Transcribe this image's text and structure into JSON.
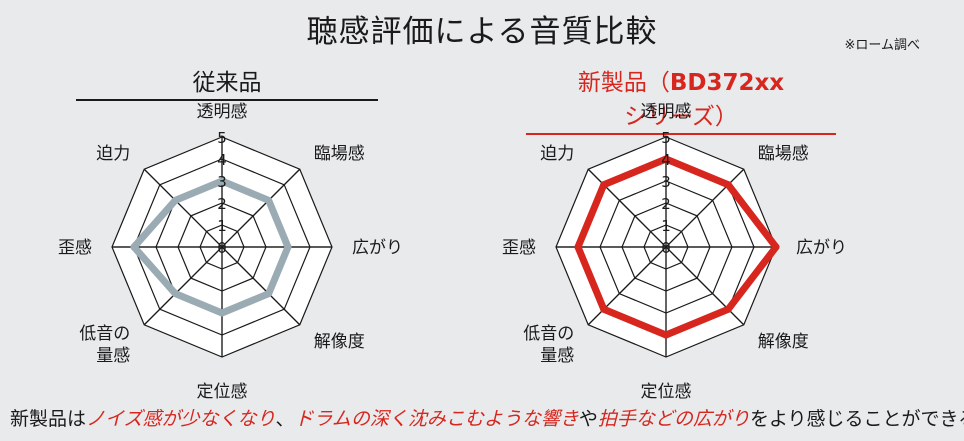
{
  "header": {
    "title": "聴感評価による音質比較",
    "note": "※ローム調べ"
  },
  "panels": {
    "left": {
      "title": "従来品"
    },
    "right": {
      "title_prefix": "新製品（",
      "title_model": "BD372xx",
      "title_suffix": "シリーズ）"
    }
  },
  "footer": {
    "seg1": "新製品は",
    "seg2": "ノイズ感が少なくなり",
    "seg3": "、",
    "seg4": "ドラムの深く沈みこむような響き",
    "seg5": "や",
    "seg6": "拍手などの広がり",
    "seg7": "をより感じることができる"
  },
  "colors": {
    "conventional": "#9aabb3",
    "new": "#d7261e",
    "grid": "#1a1a1a",
    "background": "#e8eaec"
  },
  "chart_data": [
    {
      "type": "radar",
      "title": "従来品",
      "axes": [
        "透明感",
        "臨場感",
        "広がり",
        "解像度",
        "定位感",
        "低音の量感",
        "歪感",
        "迫力"
      ],
      "axis_label_lines": [
        [
          "透明感"
        ],
        [
          "臨場感"
        ],
        [
          "広がり"
        ],
        [
          "解像度"
        ],
        [
          "定位感"
        ],
        [
          "低音の",
          "量感"
        ],
        [
          "歪感"
        ],
        [
          "迫力"
        ]
      ],
      "r_ticks": [
        "0",
        "1",
        "2",
        "3",
        "4",
        "5"
      ],
      "rlim": [
        0,
        5
      ],
      "series": [
        {
          "values": [
            3,
            3,
            3,
            3,
            3,
            3,
            4,
            3
          ],
          "color": "#9aabb3"
        }
      ]
    },
    {
      "type": "radar",
      "title": "新製品（BD372xxシリーズ）",
      "axes": [
        "透明感",
        "臨場感",
        "広がり",
        "解像度",
        "定位感",
        "低音の量感",
        "歪感",
        "迫力"
      ],
      "axis_label_lines": [
        [
          "透明感"
        ],
        [
          "臨場感"
        ],
        [
          "広がり"
        ],
        [
          "解像度"
        ],
        [
          "定位感"
        ],
        [
          "低音の",
          "量感"
        ],
        [
          "歪感"
        ],
        [
          "迫力"
        ]
      ],
      "r_ticks": [
        "0",
        "1",
        "2",
        "3",
        "4",
        "5"
      ],
      "rlim": [
        0,
        5
      ],
      "series": [
        {
          "values": [
            4,
            4,
            5,
            4,
            4,
            4,
            4,
            4
          ],
          "color": "#d7261e"
        }
      ]
    }
  ]
}
